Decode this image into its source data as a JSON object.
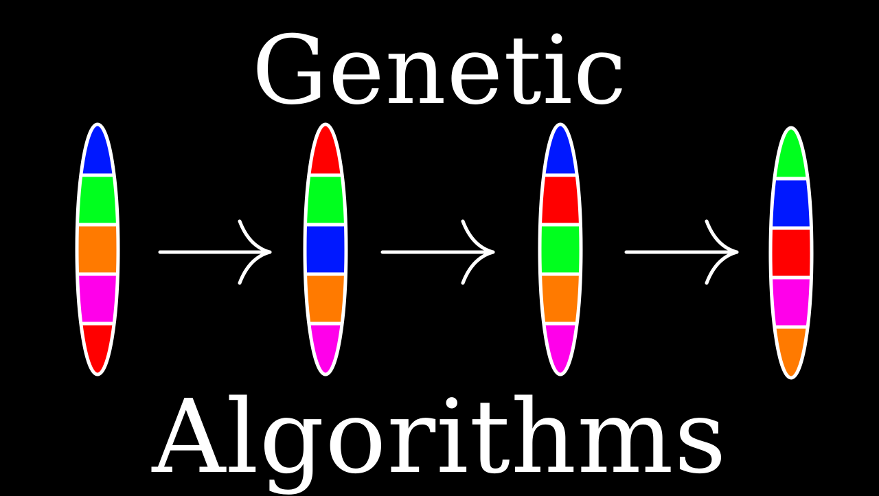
{
  "title": {
    "line1": "Genetic",
    "line2": "Algorithms"
  },
  "colors": {
    "background": "#000000",
    "outline": "#ffffff",
    "arrow": "#ffffff",
    "blue": "#0018ff",
    "green": "#00ff1e",
    "orange": "#ff7a00",
    "magenta": "#ff00ea",
    "red": "#ff0000"
  },
  "chromosomes": [
    {
      "genes": [
        "blue",
        "green",
        "orange",
        "magenta",
        "red"
      ]
    },
    {
      "genes": [
        "red",
        "green",
        "blue",
        "orange",
        "magenta"
      ]
    },
    {
      "genes": [
        "blue",
        "red",
        "green",
        "orange",
        "magenta"
      ]
    },
    {
      "genes": [
        "green",
        "blue",
        "red",
        "magenta",
        "orange"
      ]
    }
  ],
  "arrow_count": 3
}
